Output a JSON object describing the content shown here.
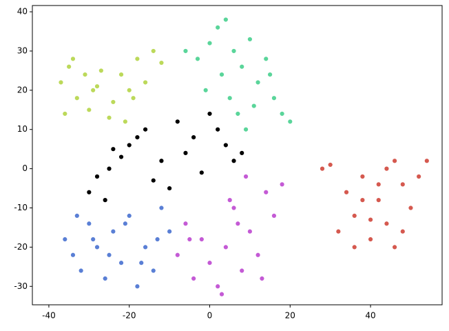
{
  "chart_data": {
    "type": "scatter",
    "xlim": [
      -44.1,
      57.8
    ],
    "ylim": [
      -34.7,
      41.6
    ],
    "xticks": [
      -40,
      -20,
      0,
      20,
      40
    ],
    "yticks": [
      -30,
      -20,
      -10,
      0,
      10,
      20,
      30,
      40
    ],
    "series": [
      {
        "color": "#bcd95a",
        "x": [
          -37,
          -35,
          -33,
          -31,
          -29,
          -27,
          -36,
          -34,
          -30,
          -25,
          -22,
          -20,
          -18,
          -16,
          -14,
          -12,
          -24,
          -19,
          -21,
          -28
        ],
        "y": [
          22,
          26,
          18,
          24,
          20,
          25,
          14,
          28,
          15,
          13,
          24,
          20,
          28,
          22,
          30,
          27,
          17,
          18,
          12,
          21
        ]
      },
      {
        "color": "#5ad59a",
        "x": [
          -3,
          0,
          2,
          4,
          6,
          8,
          10,
          12,
          14,
          16,
          18,
          -6,
          3,
          7,
          11,
          15,
          20,
          -1,
          5,
          9
        ],
        "y": [
          28,
          32,
          36,
          38,
          30,
          26,
          33,
          22,
          28,
          18,
          14,
          30,
          24,
          14,
          16,
          24,
          12,
          20,
          18,
          10
        ]
      },
      {
        "color": "#000000",
        "x": [
          -30,
          -28,
          -25,
          -22,
          -20,
          -18,
          -16,
          -14,
          -12,
          -10,
          -8,
          -6,
          -4,
          -2,
          0,
          2,
          4,
          6,
          8,
          -26,
          -24
        ],
        "y": [
          -6,
          -2,
          0,
          3,
          6,
          8,
          10,
          -3,
          2,
          -5,
          12,
          4,
          8,
          -1,
          14,
          10,
          6,
          2,
          4,
          -8,
          5
        ]
      },
      {
        "color": "#5a7fd5",
        "x": [
          -36,
          -34,
          -32,
          -30,
          -28,
          -26,
          -24,
          -22,
          -20,
          -18,
          -16,
          -14,
          -12,
          -10,
          -33,
          -29,
          -25,
          -21,
          -17,
          -13
        ],
        "y": [
          -18,
          -22,
          -26,
          -14,
          -20,
          -28,
          -16,
          -24,
          -12,
          -30,
          -20,
          -26,
          -10,
          -16,
          -12,
          -18,
          -22,
          -14,
          -24,
          -18
        ]
      },
      {
        "color": "#c45ad5",
        "x": [
          -8,
          -6,
          -4,
          -2,
          0,
          2,
          4,
          6,
          8,
          10,
          12,
          14,
          16,
          18,
          -5,
          3,
          9,
          13,
          5,
          7
        ],
        "y": [
          -22,
          -14,
          -28,
          -18,
          -24,
          -30,
          -20,
          -10,
          -26,
          -16,
          -22,
          -6,
          -12,
          -4,
          -18,
          -32,
          -2,
          -28,
          -8,
          -14
        ]
      },
      {
        "color": "#d5594f",
        "x": [
          28,
          32,
          34,
          36,
          38,
          40,
          42,
          44,
          46,
          48,
          50,
          52,
          54,
          36,
          40,
          44,
          48,
          38,
          42,
          46,
          30
        ],
        "y": [
          0,
          -16,
          -6,
          -12,
          -2,
          -18,
          -8,
          -14,
          2,
          -4,
          -10,
          -2,
          2,
          -20,
          -13,
          0,
          -16,
          -8,
          -4,
          -20,
          1
        ]
      }
    ]
  }
}
